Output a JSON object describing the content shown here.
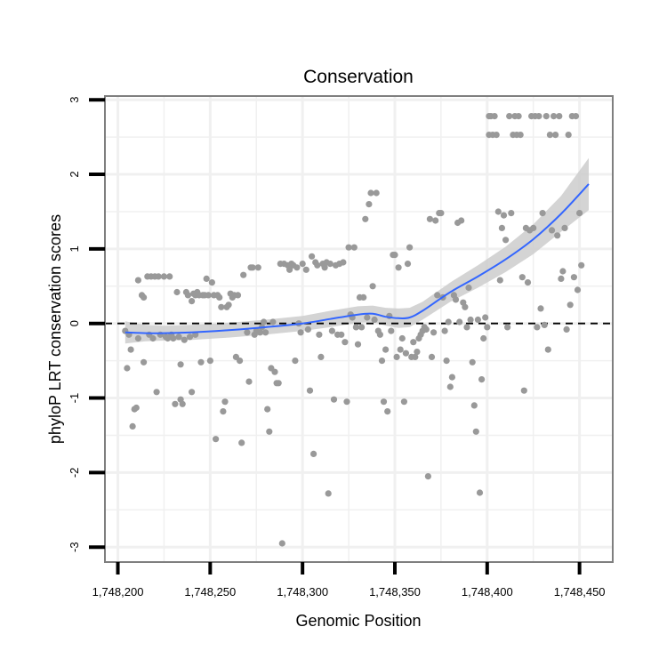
{
  "chart_data": {
    "type": "scatter",
    "title": "Conservation",
    "xlabel": "Genomic Position",
    "ylabel": "phyloP LRT conservation scores",
    "xlim": [
      1748193,
      1748468
    ],
    "ylim": [
      -3.2,
      3.05
    ],
    "xticks": [
      1748200,
      1748250,
      1748300,
      1748350,
      1748400,
      1748450
    ],
    "xtick_labels": [
      "1,748,200",
      "1,748,250",
      "1,748,300",
      "1,748,350",
      "1,748,400",
      "1,748,450"
    ],
    "yticks": [
      3,
      2,
      1,
      0,
      -1,
      -2,
      -3
    ],
    "ytick_labels": [
      "3",
      "2",
      "1",
      "0",
      "-1",
      "-2",
      "-3"
    ],
    "grid": true,
    "reference_line": {
      "y": 0,
      "style": "dashed"
    },
    "colors": {
      "points": "#999999",
      "smooth": "#3366ff",
      "band": "#cccccc",
      "frame": "#7f7f7f",
      "grid": "#f0f0f0"
    },
    "series": [
      {
        "name": "phyloP scores",
        "points": [
          [
            1748204,
            -0.1
          ],
          [
            1748205,
            -0.6
          ],
          [
            1748206,
            -0.15
          ],
          [
            1748207,
            -0.35
          ],
          [
            1748208,
            -1.38
          ],
          [
            1748209,
            -1.15
          ],
          [
            1748210,
            -1.13
          ],
          [
            1748211,
            0.58
          ],
          [
            1748211,
            -0.2
          ],
          [
            1748213,
            0.38
          ],
          [
            1748214,
            0.35
          ],
          [
            1748214,
            -0.52
          ],
          [
            1748216,
            0.63
          ],
          [
            1748217,
            -0.15
          ],
          [
            1748218,
            0.63
          ],
          [
            1748219,
            -0.2
          ],
          [
            1748220,
            0.63
          ],
          [
            1748221,
            -0.92
          ],
          [
            1748222,
            0.63
          ],
          [
            1748223,
            -0.15
          ],
          [
            1748225,
            0.63
          ],
          [
            1748226,
            -0.18
          ],
          [
            1748227,
            -0.2
          ],
          [
            1748228,
            0.63
          ],
          [
            1748229,
            -0.15
          ],
          [
            1748230,
            -0.2
          ],
          [
            1748231,
            -1.08
          ],
          [
            1748232,
            0.42
          ],
          [
            1748233,
            -0.18
          ],
          [
            1748234,
            -1.02
          ],
          [
            1748234,
            -0.55
          ],
          [
            1748235,
            -1.08
          ],
          [
            1748236,
            -0.22
          ],
          [
            1748237,
            0.42
          ],
          [
            1748238,
            0.38
          ],
          [
            1748239,
            -0.18
          ],
          [
            1748240,
            0.3
          ],
          [
            1748240,
            -0.92
          ],
          [
            1748241,
            0.4
          ],
          [
            1748242,
            0.38
          ],
          [
            1748242,
            -0.15
          ],
          [
            1748243,
            0.42
          ],
          [
            1748244,
            0.38
          ],
          [
            1748245,
            -0.52
          ],
          [
            1748246,
            0.38
          ],
          [
            1748247,
            0.38
          ],
          [
            1748248,
            0.6
          ],
          [
            1748249,
            0.38
          ],
          [
            1748250,
            -0.5
          ],
          [
            1748251,
            0.55
          ],
          [
            1748252,
            0.38
          ],
          [
            1748253,
            -1.55
          ],
          [
            1748254,
            0.38
          ],
          [
            1748255,
            0.35
          ],
          [
            1748256,
            0.22
          ],
          [
            1748257,
            -1.18
          ],
          [
            1748258,
            -1.05
          ],
          [
            1748259,
            0.22
          ],
          [
            1748260,
            0.25
          ],
          [
            1748261,
            0.4
          ],
          [
            1748262,
            0.35
          ],
          [
            1748263,
            0.38
          ],
          [
            1748264,
            -0.45
          ],
          [
            1748265,
            0.38
          ],
          [
            1748266,
            -0.5
          ],
          [
            1748267,
            -1.6
          ],
          [
            1748268,
            0.65
          ],
          [
            1748270,
            -0.12
          ],
          [
            1748271,
            -0.78
          ],
          [
            1748272,
            0.75
          ],
          [
            1748273,
            0.75
          ],
          [
            1748274,
            -0.15
          ],
          [
            1748275,
            -0.1
          ],
          [
            1748276,
            0.75
          ],
          [
            1748277,
            -0.12
          ],
          [
            1748278,
            -0.05
          ],
          [
            1748279,
            0.02
          ],
          [
            1748280,
            -0.12
          ],
          [
            1748281,
            -1.15
          ],
          [
            1748282,
            -1.45
          ],
          [
            1748283,
            -0.6
          ],
          [
            1748284,
            0.02
          ],
          [
            1748285,
            -0.65
          ],
          [
            1748286,
            -0.8
          ],
          [
            1748287,
            -0.8
          ],
          [
            1748288,
            0.8
          ],
          [
            1748289,
            -2.95
          ],
          [
            1748290,
            0.8
          ],
          [
            1748292,
            0.78
          ],
          [
            1748293,
            0.72
          ],
          [
            1748294,
            0.8
          ],
          [
            1748295,
            0.78
          ],
          [
            1748296,
            -0.5
          ],
          [
            1748297,
            0.75
          ],
          [
            1748298,
            0.0
          ],
          [
            1748299,
            -0.12
          ],
          [
            1748300,
            0.8
          ],
          [
            1748302,
            0.72
          ],
          [
            1748303,
            -0.08
          ],
          [
            1748304,
            -0.9
          ],
          [
            1748305,
            0.9
          ],
          [
            1748306,
            -1.75
          ],
          [
            1748307,
            0.82
          ],
          [
            1748308,
            0.78
          ],
          [
            1748309,
            -0.15
          ],
          [
            1748310,
            -0.45
          ],
          [
            1748311,
            0.8
          ],
          [
            1748312,
            0.75
          ],
          [
            1748313,
            0.82
          ],
          [
            1748314,
            -2.28
          ],
          [
            1748315,
            0.8
          ],
          [
            1748316,
            -0.1
          ],
          [
            1748317,
            -1.02
          ],
          [
            1748318,
            0.78
          ],
          [
            1748319,
            -0.15
          ],
          [
            1748320,
            0.8
          ],
          [
            1748321,
            -0.15
          ],
          [
            1748322,
            0.82
          ],
          [
            1748323,
            -0.25
          ],
          [
            1748324,
            -1.05
          ],
          [
            1748325,
            1.02
          ],
          [
            1748326,
            0.12
          ],
          [
            1748327,
            0.08
          ],
          [
            1748328,
            1.02
          ],
          [
            1748329,
            -0.05
          ],
          [
            1748330,
            -0.28
          ],
          [
            1748331,
            0.35
          ],
          [
            1748332,
            -0.05
          ],
          [
            1748333,
            0.35
          ],
          [
            1748334,
            1.4
          ],
          [
            1748335,
            0.08
          ],
          [
            1748336,
            1.6
          ],
          [
            1748337,
            1.75
          ],
          [
            1748338,
            0.5
          ],
          [
            1748339,
            0.05
          ],
          [
            1748340,
            1.75
          ],
          [
            1748341,
            -0.1
          ],
          [
            1748342,
            -0.15
          ],
          [
            1748343,
            -0.5
          ],
          [
            1748344,
            -1.05
          ],
          [
            1748345,
            -0.35
          ],
          [
            1748346,
            -1.18
          ],
          [
            1748347,
            0.1
          ],
          [
            1748348,
            -0.1
          ],
          [
            1748349,
            0.92
          ],
          [
            1748350,
            0.92
          ],
          [
            1748351,
            -0.45
          ],
          [
            1748352,
            0.75
          ],
          [
            1748353,
            -0.35
          ],
          [
            1748354,
            -0.2
          ],
          [
            1748355,
            -1.05
          ],
          [
            1748356,
            -0.4
          ],
          [
            1748357,
            0.8
          ],
          [
            1748358,
            1.02
          ],
          [
            1748359,
            -0.45
          ],
          [
            1748360,
            -0.25
          ],
          [
            1748361,
            -0.45
          ],
          [
            1748362,
            -0.38
          ],
          [
            1748363,
            -0.2
          ],
          [
            1748364,
            -0.15
          ],
          [
            1748365,
            -0.1
          ],
          [
            1748366,
            -0.05
          ],
          [
            1748367,
            -0.08
          ],
          [
            1748368,
            -2.05
          ],
          [
            1748369,
            1.4
          ],
          [
            1748370,
            -0.45
          ],
          [
            1748371,
            -0.12
          ],
          [
            1748372,
            1.38
          ],
          [
            1748373,
            0.38
          ],
          [
            1748374,
            1.48
          ],
          [
            1748375,
            1.48
          ],
          [
            1748376,
            0.35
          ],
          [
            1748377,
            -0.1
          ],
          [
            1748378,
            -0.5
          ],
          [
            1748379,
            0.02
          ],
          [
            1748380,
            -0.85
          ],
          [
            1748381,
            -0.72
          ],
          [
            1748382,
            0.38
          ],
          [
            1748383,
            0.32
          ],
          [
            1748384,
            1.35
          ],
          [
            1748385,
            0.02
          ],
          [
            1748386,
            1.38
          ],
          [
            1748387,
            0.28
          ],
          [
            1748388,
            0.22
          ],
          [
            1748389,
            -0.05
          ],
          [
            1748390,
            0.48
          ],
          [
            1748391,
            0.05
          ],
          [
            1748392,
            -0.52
          ],
          [
            1748393,
            -1.1
          ],
          [
            1748394,
            -1.45
          ],
          [
            1748395,
            0.05
          ],
          [
            1748396,
            -2.27
          ],
          [
            1748397,
            -0.75
          ],
          [
            1748398,
            -0.2
          ],
          [
            1748399,
            0.08
          ],
          [
            1748400,
            -0.05
          ],
          [
            1748401,
            2.78
          ],
          [
            1748401,
            2.53
          ],
          [
            1748402,
            2.78
          ],
          [
            1748403,
            2.53
          ],
          [
            1748404,
            2.78
          ],
          [
            1748405,
            2.53
          ],
          [
            1748406,
            1.5
          ],
          [
            1748407,
            0.58
          ],
          [
            1748408,
            1.28
          ],
          [
            1748409,
            1.45
          ],
          [
            1748410,
            1.12
          ],
          [
            1748411,
            -0.05
          ],
          [
            1748412,
            2.78
          ],
          [
            1748413,
            1.48
          ],
          [
            1748414,
            2.53
          ],
          [
            1748415,
            2.78
          ],
          [
            1748416,
            2.53
          ],
          [
            1748417,
            2.78
          ],
          [
            1748418,
            2.53
          ],
          [
            1748419,
            0.62
          ],
          [
            1748420,
            -0.9
          ],
          [
            1748421,
            1.28
          ],
          [
            1748422,
            0.55
          ],
          [
            1748423,
            1.25
          ],
          [
            1748424,
            2.78
          ],
          [
            1748425,
            1.28
          ],
          [
            1748426,
            2.78
          ],
          [
            1748427,
            -0.05
          ],
          [
            1748428,
            2.78
          ],
          [
            1748429,
            0.2
          ],
          [
            1748430,
            1.48
          ],
          [
            1748431,
            -0.02
          ],
          [
            1748432,
            2.78
          ],
          [
            1748433,
            -0.35
          ],
          [
            1748434,
            2.53
          ],
          [
            1748435,
            1.25
          ],
          [
            1748436,
            2.78
          ],
          [
            1748437,
            2.53
          ],
          [
            1748438,
            1.18
          ],
          [
            1748439,
            2.78
          ],
          [
            1748440,
            0.6
          ],
          [
            1748441,
            0.7
          ],
          [
            1748442,
            1.28
          ],
          [
            1748443,
            -0.08
          ],
          [
            1748444,
            2.53
          ],
          [
            1748445,
            0.25
          ],
          [
            1748446,
            2.78
          ],
          [
            1748447,
            0.62
          ],
          [
            1748448,
            2.78
          ],
          [
            1748449,
            0.45
          ],
          [
            1748450,
            1.48
          ],
          [
            1748451,
            0.78
          ]
        ]
      },
      {
        "name": "smooth fit",
        "x": [
          1748204,
          1748215,
          1748225,
          1748240,
          1748260,
          1748280,
          1748300,
          1748315,
          1748330,
          1748338,
          1748345,
          1748352,
          1748358,
          1748365,
          1748380,
          1748395,
          1748410,
          1748425,
          1748440,
          1748455
        ],
        "y": [
          -0.12,
          -0.13,
          -0.13,
          -0.12,
          -0.09,
          -0.05,
          0.0,
          0.06,
          0.12,
          0.13,
          0.09,
          0.07,
          0.08,
          0.17,
          0.42,
          0.63,
          0.86,
          1.13,
          1.47,
          1.87
        ],
        "lower": [
          -0.27,
          -0.24,
          -0.23,
          -0.22,
          -0.19,
          -0.15,
          -0.1,
          -0.05,
          0.01,
          0.02,
          -0.03,
          -0.06,
          -0.05,
          0.05,
          0.29,
          0.48,
          0.69,
          0.93,
          1.23,
          1.52
        ],
        "upper": [
          0.03,
          -0.02,
          -0.03,
          -0.02,
          0.01,
          0.05,
          0.1,
          0.17,
          0.23,
          0.24,
          0.21,
          0.2,
          0.21,
          0.29,
          0.55,
          0.78,
          1.03,
          1.33,
          1.71,
          2.22
        ]
      }
    ]
  }
}
